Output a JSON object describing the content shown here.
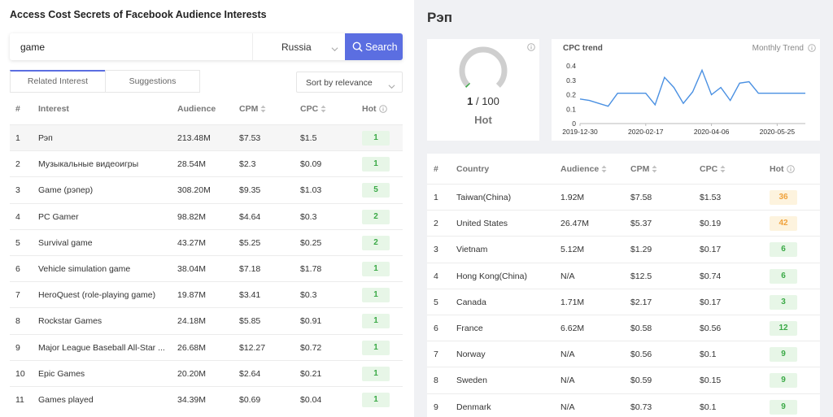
{
  "left": {
    "title": "Access Cost Secrets of Facebook Audience Interests",
    "search": {
      "value": "game",
      "country": "Russia",
      "button_label": "Search"
    },
    "tabs": [
      {
        "label": "Related Interest",
        "active": true
      },
      {
        "label": "Suggestions",
        "active": false
      }
    ],
    "sort": {
      "selected": "Sort by relevance"
    },
    "table": {
      "headers": {
        "num": "#",
        "interest": "Interest",
        "audience": "Audience",
        "cpm": "CPM",
        "cpc": "CPC",
        "hot": "Hot"
      },
      "rows": [
        {
          "num": "1",
          "interest": "Рэп",
          "audience": "213.48M",
          "cpm": "$7.53",
          "cpc": "$1.5",
          "hot": "1"
        },
        {
          "num": "2",
          "interest": "Музыкальные видеоигры",
          "audience": "28.54M",
          "cpm": "$2.3",
          "cpc": "$0.09",
          "hot": "1"
        },
        {
          "num": "3",
          "interest": "Game (рэпер)",
          "audience": "308.20M",
          "cpm": "$9.35",
          "cpc": "$1.03",
          "hot": "5"
        },
        {
          "num": "4",
          "interest": "PC Gamer",
          "audience": "98.82M",
          "cpm": "$4.64",
          "cpc": "$0.3",
          "hot": "2"
        },
        {
          "num": "5",
          "interest": "Survival game",
          "audience": "43.27M",
          "cpm": "$5.25",
          "cpc": "$0.25",
          "hot": "2"
        },
        {
          "num": "6",
          "interest": "Vehicle simulation game",
          "audience": "38.04M",
          "cpm": "$7.18",
          "cpc": "$1.78",
          "hot": "1"
        },
        {
          "num": "7",
          "interest": "HeroQuest (role-playing game)",
          "audience": "19.87M",
          "cpm": "$3.41",
          "cpc": "$0.3",
          "hot": "1"
        },
        {
          "num": "8",
          "interest": "Rockstar Games",
          "audience": "24.18M",
          "cpm": "$5.85",
          "cpc": "$0.91",
          "hot": "1"
        },
        {
          "num": "9",
          "interest": "Major League Baseball All-Star ...",
          "audience": "26.68M",
          "cpm": "$12.27",
          "cpc": "$0.72",
          "hot": "1"
        },
        {
          "num": "10",
          "interest": "Epic Games",
          "audience": "20.20M",
          "cpm": "$2.64",
          "cpc": "$0.21",
          "hot": "1"
        },
        {
          "num": "11",
          "interest": "Games played",
          "audience": "34.39M",
          "cpm": "$0.69",
          "cpc": "$0.04",
          "hot": "1"
        }
      ]
    }
  },
  "right": {
    "title": "Рэп",
    "hot_card": {
      "score": "1",
      "max": "/ 100",
      "label": "Hot",
      "gauge_fraction": 0.01
    },
    "trend": {
      "title": "CPC trend",
      "mode": "Monthly Trend"
    },
    "table": {
      "headers": {
        "num": "#",
        "country": "Country",
        "audience": "Audience",
        "cpm": "CPM",
        "cpc": "CPC",
        "hot": "Hot"
      },
      "rows": [
        {
          "num": "1",
          "country": "Taiwan(China)",
          "audience": "1.92M",
          "cpm": "$7.58",
          "cpc": "$1.53",
          "hot": "36",
          "hot_level": "orange"
        },
        {
          "num": "2",
          "country": "United States",
          "audience": "26.47M",
          "cpm": "$5.37",
          "cpc": "$0.19",
          "hot": "42",
          "hot_level": "orange"
        },
        {
          "num": "3",
          "country": "Vietnam",
          "audience": "5.12M",
          "cpm": "$1.29",
          "cpc": "$0.17",
          "hot": "6",
          "hot_level": "green"
        },
        {
          "num": "4",
          "country": "Hong Kong(China)",
          "audience": "N/A",
          "cpm": "$12.5",
          "cpc": "$0.74",
          "hot": "6",
          "hot_level": "green"
        },
        {
          "num": "5",
          "country": "Canada",
          "audience": "1.71M",
          "cpm": "$2.17",
          "cpc": "$0.17",
          "hot": "3",
          "hot_level": "green"
        },
        {
          "num": "6",
          "country": "France",
          "audience": "6.62M",
          "cpm": "$0.58",
          "cpc": "$0.56",
          "hot": "12",
          "hot_level": "green"
        },
        {
          "num": "7",
          "country": "Norway",
          "audience": "N/A",
          "cpm": "$0.56",
          "cpc": "$0.1",
          "hot": "9",
          "hot_level": "green"
        },
        {
          "num": "8",
          "country": "Sweden",
          "audience": "N/A",
          "cpm": "$0.59",
          "cpc": "$0.15",
          "hot": "9",
          "hot_level": "green"
        },
        {
          "num": "9",
          "country": "Denmark",
          "audience": "N/A",
          "cpm": "$0.73",
          "cpc": "$0.1",
          "hot": "9",
          "hot_level": "green"
        }
      ]
    }
  },
  "colors": {
    "accent": "#5b6ee1",
    "line": "#4a90e2",
    "hot_green_bg": "#e7f6e7",
    "hot_green_text": "#3aa946",
    "hot_orange_bg": "#fdf3de",
    "hot_orange_text": "#f0a23c",
    "gauge_track": "#cfcfcf"
  },
  "icons": {
    "search": "search-icon",
    "chevron": "chevron-down-icon",
    "sort": "sort-arrows-icon",
    "info": "info-icon"
  },
  "chart_data": {
    "type": "line",
    "title": "CPC trend",
    "x": [
      "2019-12-30",
      "2020-01-06",
      "2020-01-13",
      "2020-01-20",
      "2020-01-27",
      "2020-02-03",
      "2020-02-10",
      "2020-02-17",
      "2020-02-24",
      "2020-03-02",
      "2020-03-09",
      "2020-03-16",
      "2020-03-23",
      "2020-03-30",
      "2020-04-06",
      "2020-04-13",
      "2020-04-20",
      "2020-04-27",
      "2020-05-04",
      "2020-05-11",
      "2020-05-18",
      "2020-05-25",
      "2020-06-01",
      "2020-06-08",
      "2020-06-15"
    ],
    "x_ticks": [
      "2019-12-30",
      "2020-02-17",
      "2020-04-06",
      "2020-05-25"
    ],
    "series": [
      {
        "values": [
          0.17,
          0.16,
          0.14,
          0.12,
          0.21,
          0.21,
          0.21,
          0.21,
          0.13,
          0.32,
          0.25,
          0.14,
          0.22,
          0.37,
          0.2,
          0.25,
          0.16,
          0.28,
          0.29,
          0.21,
          0.21,
          0.21,
          0.21,
          0.21,
          0.21
        ]
      }
    ],
    "y_ticks": [
      "0.4",
      "0.3",
      "0.2",
      "0.1",
      "0"
    ],
    "ylim": [
      0,
      0.4
    ],
    "grid": false
  }
}
